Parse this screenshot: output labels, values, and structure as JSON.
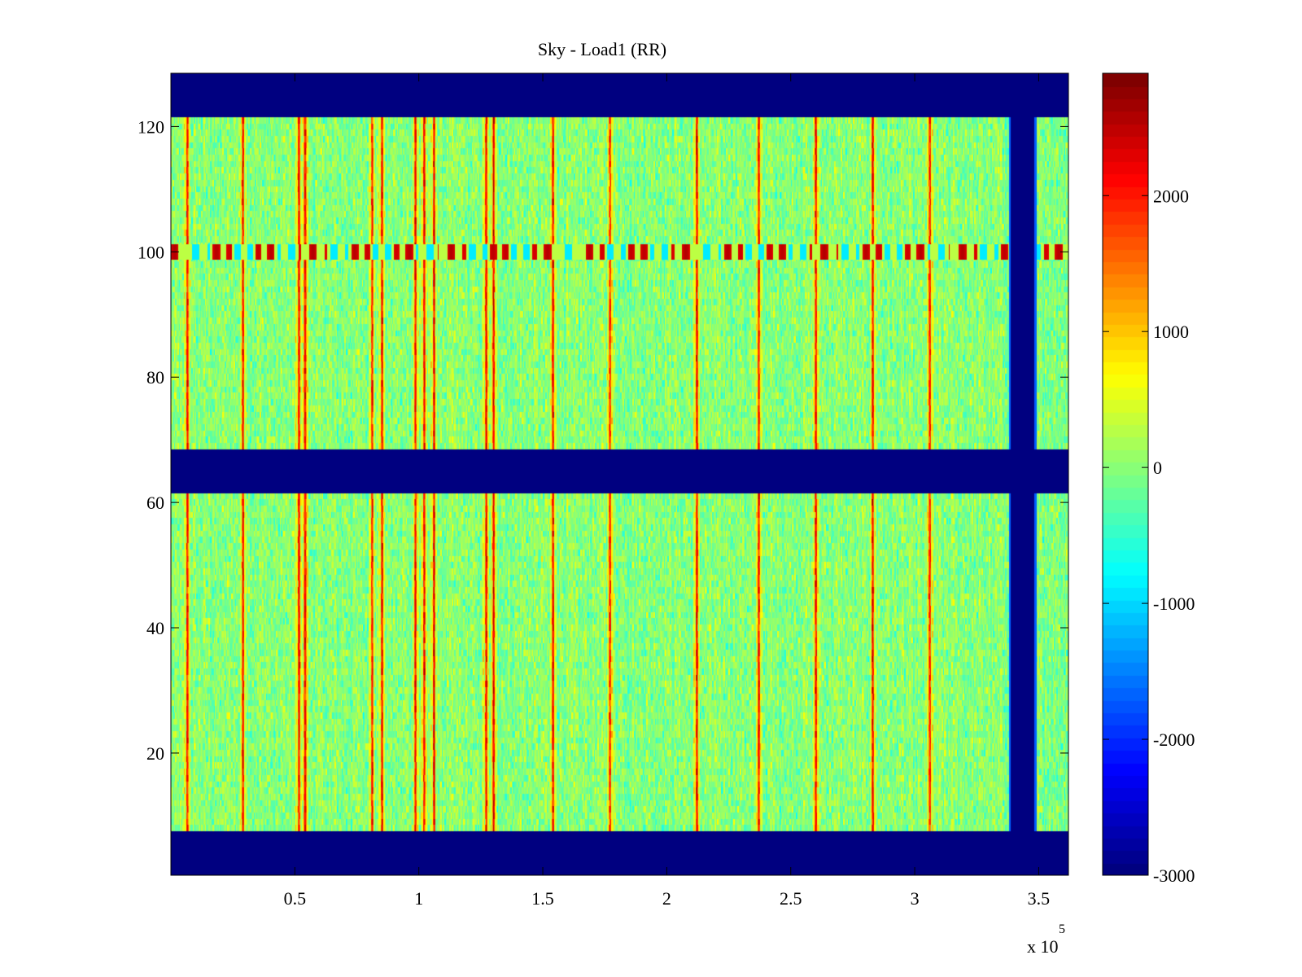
{
  "chart_data": {
    "type": "heatmap",
    "title": "Sky - Load1 (RR)",
    "xlabel": "",
    "ylabel": "",
    "xlim": [
      0,
      362000
    ],
    "ylim": [
      0.5,
      128.5
    ],
    "x_ticks": [
      50000,
      100000,
      150000,
      200000,
      250000,
      300000,
      350000
    ],
    "x_tick_labels": [
      "0.5",
      "1",
      "1.5",
      "2",
      "2.5",
      "3",
      "3.5"
    ],
    "x_exponent_label": "x 10",
    "x_exponent_power": "5",
    "y_ticks": [
      20,
      40,
      60,
      80,
      100,
      120
    ],
    "y_tick_labels": [
      "20",
      "40",
      "60",
      "80",
      "100",
      "120"
    ],
    "colormap": "jet",
    "clim": [
      -3000,
      2900
    ],
    "colorbar_ticks": [
      2000,
      1000,
      0,
      -1000,
      -2000,
      -3000
    ],
    "colorbar_tick_labels": [
      "2000",
      "1000",
      "0",
      "-1000",
      "-2000",
      "-3000"
    ],
    "masked_row_ranges": [
      [
        0.5,
        7.5
      ],
      [
        61.5,
        68.5
      ],
      [
        121.5,
        128.5
      ]
    ],
    "masked_x_range": [
      338000,
      349000
    ],
    "hot_row": 100,
    "bright_column_x": [
      6500,
      29000,
      51500,
      54000,
      81000,
      85000,
      98500,
      102000,
      106000,
      127000,
      130000,
      154000,
      177000,
      212000,
      237000,
      260000,
      283000,
      306000
    ],
    "background_level": 0
  },
  "colors": {
    "masked": "#00008f",
    "axes": "#000000"
  }
}
